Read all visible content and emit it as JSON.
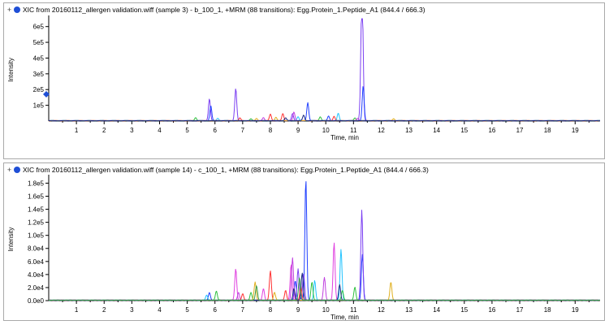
{
  "chart_data": [
    {
      "type": "line",
      "title": "XIC from 20160112_allergen validation.wiff (sample 3) - b_100_1, +MRM (88 transitions): Egg.Protein_1.Peptide_A1 (844.4 / 666.3)",
      "xlabel": "Time, min",
      "ylabel": "Intensity",
      "xlim": [
        0,
        19.9
      ],
      "ylim": [
        0,
        650000
      ],
      "x_ticks": [
        1,
        2,
        3,
        4,
        5,
        6,
        7,
        8,
        9,
        10,
        11,
        12,
        13,
        14,
        15,
        16,
        17,
        18,
        19
      ],
      "y_ticks": [
        {
          "value": 100000,
          "label": "1e5"
        },
        {
          "value": 200000,
          "label": "2e5"
        },
        {
          "value": 300000,
          "label": "3e5"
        },
        {
          "value": 400000,
          "label": "4e5"
        },
        {
          "value": 500000,
          "label": "5e5"
        },
        {
          "value": 600000,
          "label": "6e5"
        }
      ],
      "baseline": 3000,
      "series": [
        {
          "color": "#7b3ff2",
          "peaks": [
            [
              5.8,
              140000
            ],
            [
              6.75,
              205000
            ],
            [
              11.32,
              640000
            ],
            [
              11.28,
              320000
            ],
            [
              8.8,
              45000
            ]
          ]
        },
        {
          "color": "#1f3fff",
          "peaks": [
            [
              5.85,
              95000
            ],
            [
              9.35,
              115000
            ],
            [
              11.35,
              220000
            ],
            [
              10.1,
              30000
            ]
          ]
        },
        {
          "color": "#22c3ff",
          "peaks": [
            [
              10.45,
              48000
            ],
            [
              9.0,
              25000
            ],
            [
              6.1,
              15000
            ]
          ]
        },
        {
          "color": "#ff3030",
          "peaks": [
            [
              8.0,
              42000
            ],
            [
              8.45,
              45000
            ],
            [
              10.3,
              28000
            ],
            [
              6.9,
              18000
            ]
          ]
        },
        {
          "color": "#30c040",
          "peaks": [
            [
              5.3,
              20000
            ],
            [
              7.3,
              12000
            ],
            [
              9.8,
              25000
            ],
            [
              11.05,
              18000
            ]
          ]
        },
        {
          "color": "#c040e0",
          "peaks": [
            [
              8.85,
              55000
            ],
            [
              7.75,
              20000
            ],
            [
              11.15,
              15000
            ]
          ]
        },
        {
          "color": "#e0b020",
          "peaks": [
            [
              7.5,
              14000
            ],
            [
              12.45,
              12000
            ],
            [
              8.2,
              22000
            ]
          ]
        },
        {
          "color": "#1a2a80",
          "peaks": [
            [
              9.2,
              35000
            ],
            [
              8.55,
              18000
            ]
          ]
        }
      ]
    },
    {
      "type": "line",
      "title": "XIC from 20160112_allergen validation.wiff (sample 14) - c_100_1, +MRM (88 transitions): Egg.Protein_1.Peptide_A1 (844.4 / 666.3)",
      "xlabel": "Time, min",
      "ylabel": "Intensity",
      "xlim": [
        0,
        19.9
      ],
      "ylim": [
        0,
        188000
      ],
      "x_ticks": [
        1,
        2,
        3,
        4,
        5,
        6,
        7,
        8,
        9,
        10,
        11,
        12,
        13,
        14,
        15,
        16,
        17,
        18,
        19
      ],
      "y_ticks": [
        {
          "value": 0,
          "label": "0.0e0"
        },
        {
          "value": 20000,
          "label": "2.0e4"
        },
        {
          "value": 40000,
          "label": "4.0e4"
        },
        {
          "value": 60000,
          "label": "6.0e4"
        },
        {
          "value": 80000,
          "label": "8.0e4"
        },
        {
          "value": 100000,
          "label": "1.0e5"
        },
        {
          "value": 120000,
          "label": "1.2e5"
        },
        {
          "value": 140000,
          "label": "1.4e5"
        },
        {
          "value": 160000,
          "label": "1.6e5"
        },
        {
          "value": 180000,
          "label": "1.8e5"
        }
      ],
      "baseline": 800,
      "series": [
        {
          "color": "#1f3fff",
          "peaks": [
            [
              9.28,
              185000
            ],
            [
              11.32,
              70000
            ],
            [
              5.8,
              12000
            ],
            [
              8.9,
              30000
            ]
          ]
        },
        {
          "color": "#7b3ff2",
          "peaks": [
            [
              11.3,
              138000
            ],
            [
              9.0,
              48000
            ],
            [
              9.2,
              40000
            ]
          ]
        },
        {
          "color": "#e040e0",
          "peaks": [
            [
              10.3,
              88000
            ],
            [
              6.75,
              48000
            ],
            [
              8.75,
              55000
            ],
            [
              7.75,
              18000
            ]
          ]
        },
        {
          "color": "#c040e0",
          "peaks": [
            [
              8.8,
              65000
            ],
            [
              9.95,
              35000
            ],
            [
              6.85,
              12000
            ]
          ]
        },
        {
          "color": "#22c3ff",
          "peaks": [
            [
              10.55,
              78000
            ],
            [
              9.6,
              30000
            ],
            [
              5.7,
              8000
            ]
          ]
        },
        {
          "color": "#ff3030",
          "peaks": [
            [
              8.0,
              45000
            ],
            [
              7.0,
              10000
            ],
            [
              9.1,
              22000
            ],
            [
              8.55,
              15000
            ]
          ]
        },
        {
          "color": "#30c040",
          "peaks": [
            [
              6.05,
              14000
            ],
            [
              7.3,
              12000
            ],
            [
              9.5,
              28000
            ],
            [
              11.05,
              20000
            ],
            [
              10.6,
              15000
            ]
          ]
        },
        {
          "color": "#e0b020",
          "peaks": [
            [
              12.35,
              28000
            ],
            [
              7.45,
              28000
            ],
            [
              8.15,
              12000
            ]
          ]
        },
        {
          "color": "#1a2a80",
          "peaks": [
            [
              9.15,
              42000
            ],
            [
              10.5,
              24000
            ],
            [
              8.85,
              18000
            ]
          ]
        },
        {
          "color": "#3aa050",
          "peaks": [
            [
              7.5,
              22000
            ],
            [
              9.05,
              35000
            ]
          ]
        }
      ]
    }
  ]
}
